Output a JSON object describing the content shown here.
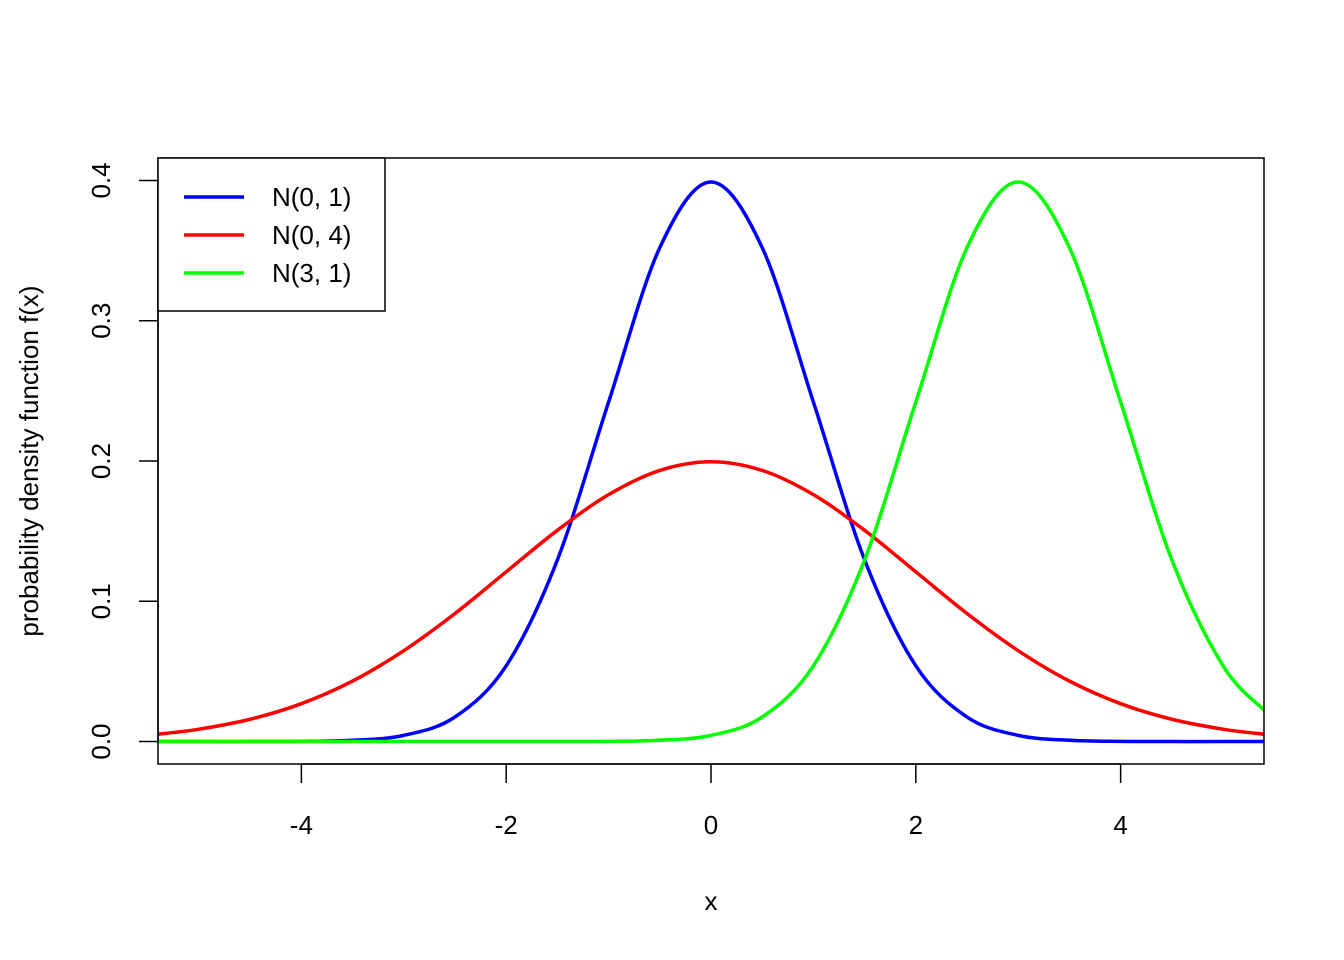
{
  "chart_data": {
    "type": "line",
    "title": "",
    "xlabel": "x",
    "ylabel": "probability density function f(x)",
    "xlim": [
      -5.4,
      5.4
    ],
    "ylim": [
      -0.016,
      0.416
    ],
    "x_ticks": [
      -4,
      -2,
      0,
      2,
      4
    ],
    "x_tick_labels": [
      "-4",
      "-2",
      "0",
      "2",
      "4"
    ],
    "y_ticks": [
      0.0,
      0.1,
      0.2,
      0.3,
      0.4
    ],
    "y_tick_labels": [
      "0.0",
      "0.1",
      "0.2",
      "0.3",
      "0.4"
    ],
    "grid": false,
    "legend_position": "top-left",
    "series": [
      {
        "name": "N(0, 1)",
        "color": "#0000ff",
        "x": [
          -5.4,
          -5,
          -4.5,
          -4,
          -3.5,
          -3,
          -2.5,
          -2,
          -1.5,
          -1,
          -0.5,
          0,
          0.5,
          1,
          1.5,
          2,
          2.5,
          3,
          3.5,
          4,
          4.5,
          5,
          5.4
        ],
        "values": [
          0.0,
          0.0,
          0.0,
          0.0001,
          0.0009,
          0.0044,
          0.0175,
          0.054,
          0.1295,
          0.242,
          0.3521,
          0.3989,
          0.3521,
          0.242,
          0.1295,
          0.054,
          0.0175,
          0.0044,
          0.0009,
          0.0001,
          0.0,
          0.0,
          0.0
        ]
      },
      {
        "name": "N(0, 4)",
        "color": "#ff0000",
        "x": [
          -5.4,
          -5,
          -4.5,
          -4,
          -3.5,
          -3,
          -2.5,
          -2,
          -1.5,
          -1,
          -0.5,
          0,
          0.5,
          1,
          1.5,
          2,
          2.5,
          3,
          3.5,
          4,
          4.5,
          5,
          5.4
        ],
        "values": [
          0.0052,
          0.0088,
          0.0159,
          0.027,
          0.0431,
          0.0648,
          0.0913,
          0.121,
          0.1506,
          0.176,
          0.1933,
          0.1995,
          0.1933,
          0.176,
          0.1506,
          0.121,
          0.0913,
          0.0648,
          0.0431,
          0.027,
          0.0159,
          0.0088,
          0.0052
        ]
      },
      {
        "name": "N(3, 1)",
        "color": "#00ff00",
        "x": [
          -5.4,
          -5,
          -4.5,
          -4,
          -3.5,
          -3,
          -2.5,
          -2,
          -1.5,
          -1,
          -0.5,
          0,
          0.5,
          1,
          1.5,
          2,
          2.5,
          3,
          3.5,
          4,
          4.5,
          5,
          5.4
        ],
        "values": [
          0.0,
          0.0,
          0.0,
          0.0,
          0.0,
          0.0,
          0.0,
          0.0,
          0.0,
          0.0001,
          0.0009,
          0.0044,
          0.0175,
          0.054,
          0.1295,
          0.242,
          0.3521,
          0.3989,
          0.3521,
          0.242,
          0.1295,
          0.054,
          0.0224
        ]
      }
    ]
  }
}
